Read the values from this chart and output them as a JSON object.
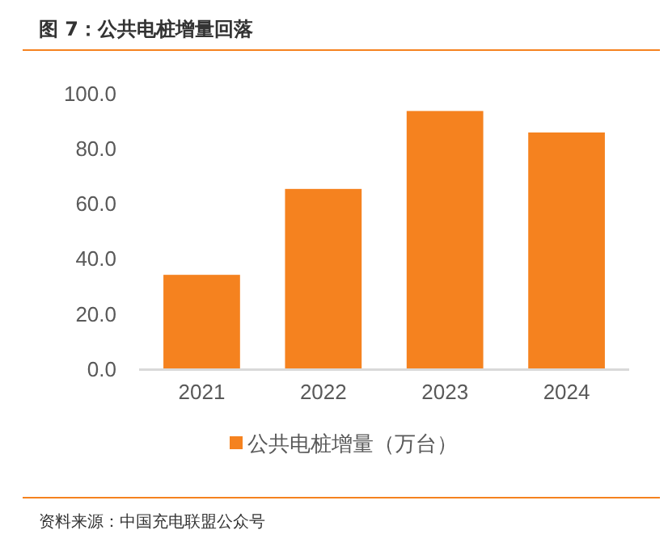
{
  "chart_data": {
    "type": "bar",
    "title": "图 7：公共电桩增量回落",
    "categories": [
      "2021",
      "2022",
      "2023",
      "2024"
    ],
    "series": [
      {
        "name": "公共电桩增量（万台）",
        "color": "#f5821f",
        "values": [
          34.4,
          65.6,
          93.9,
          86.1
        ]
      }
    ],
    "ylim": [
      0,
      100
    ],
    "yticks": [
      {
        "value": 0,
        "label": "0.0"
      },
      {
        "value": 20,
        "label": "20.0"
      },
      {
        "value": 40,
        "label": "40.0"
      },
      {
        "value": 60,
        "label": "60.0"
      },
      {
        "value": 80,
        "label": "80.0"
      },
      {
        "value": 100,
        "label": "100.0"
      }
    ],
    "grid": false,
    "legend": "bottom",
    "annotations": [
      "资料来源：中国充电联盟公众号"
    ]
  }
}
